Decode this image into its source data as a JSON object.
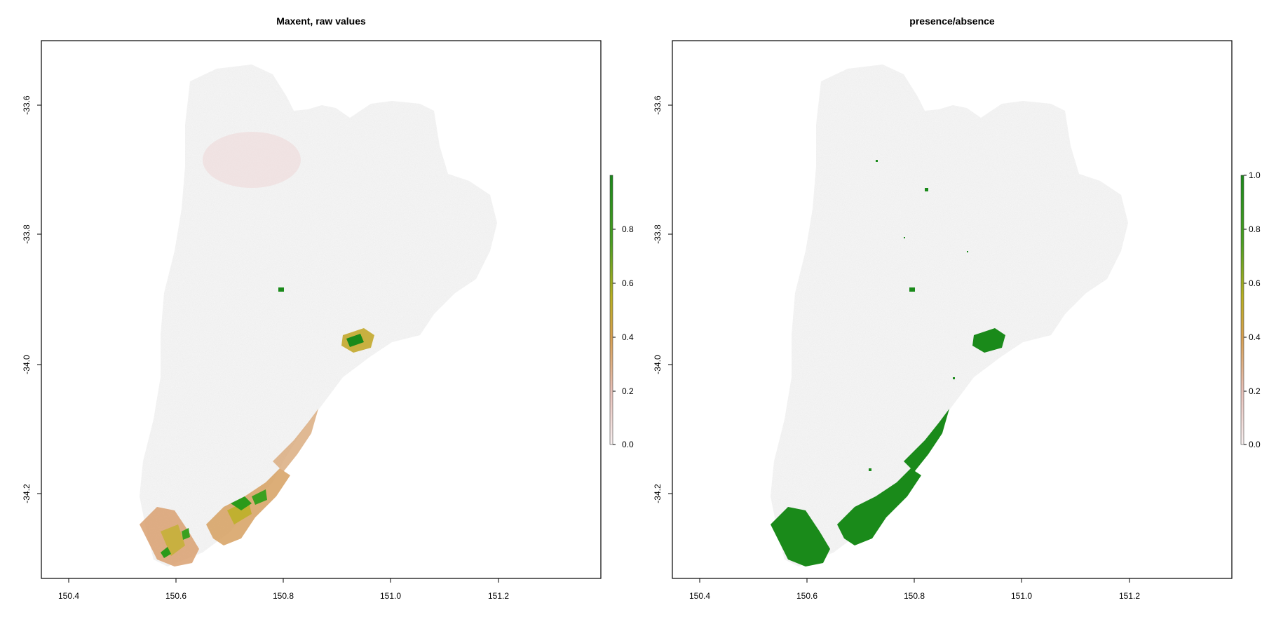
{
  "panels": [
    {
      "id": "maxent",
      "title": "Maxent, raw values",
      "x_ticks": [
        "150.4",
        "150.6",
        "150.8",
        "151.0",
        "151.2"
      ],
      "y_ticks": [
        "-33.6",
        "-33.8",
        "-34.0",
        "-34.2"
      ],
      "legend_ticks": [
        "0.8",
        "0.6",
        "0.4",
        "0.2",
        "0.0"
      ],
      "legend_range": [
        0,
        1
      ]
    },
    {
      "id": "presence",
      "title": "presence/absence",
      "x_ticks": [
        "150.4",
        "150.6",
        "150.8",
        "151.0",
        "151.2"
      ],
      "y_ticks": [
        "-33.6",
        "-33.8",
        "-34.0",
        "-34.2"
      ],
      "legend_ticks": [
        "1.0",
        "0.8",
        "0.6",
        "0.4",
        "0.2",
        "0.0"
      ],
      "legend_range": [
        0,
        1
      ]
    }
  ],
  "map_extent": {
    "lon": [
      150.35,
      151.4
    ],
    "lat": [
      -34.38,
      -33.5
    ]
  },
  "colors": {
    "background_land": "#e8e8e8",
    "low": "#f2e6e6",
    "mid_low": "#d8a070",
    "mid": "#c8b040",
    "high": "#1a8a1a"
  },
  "legend_colors": [
    "#1a8a1a",
    "#4aa020",
    "#b8b020",
    "#d8a050",
    "#e8c0b8",
    "#f8f0f0"
  ]
}
